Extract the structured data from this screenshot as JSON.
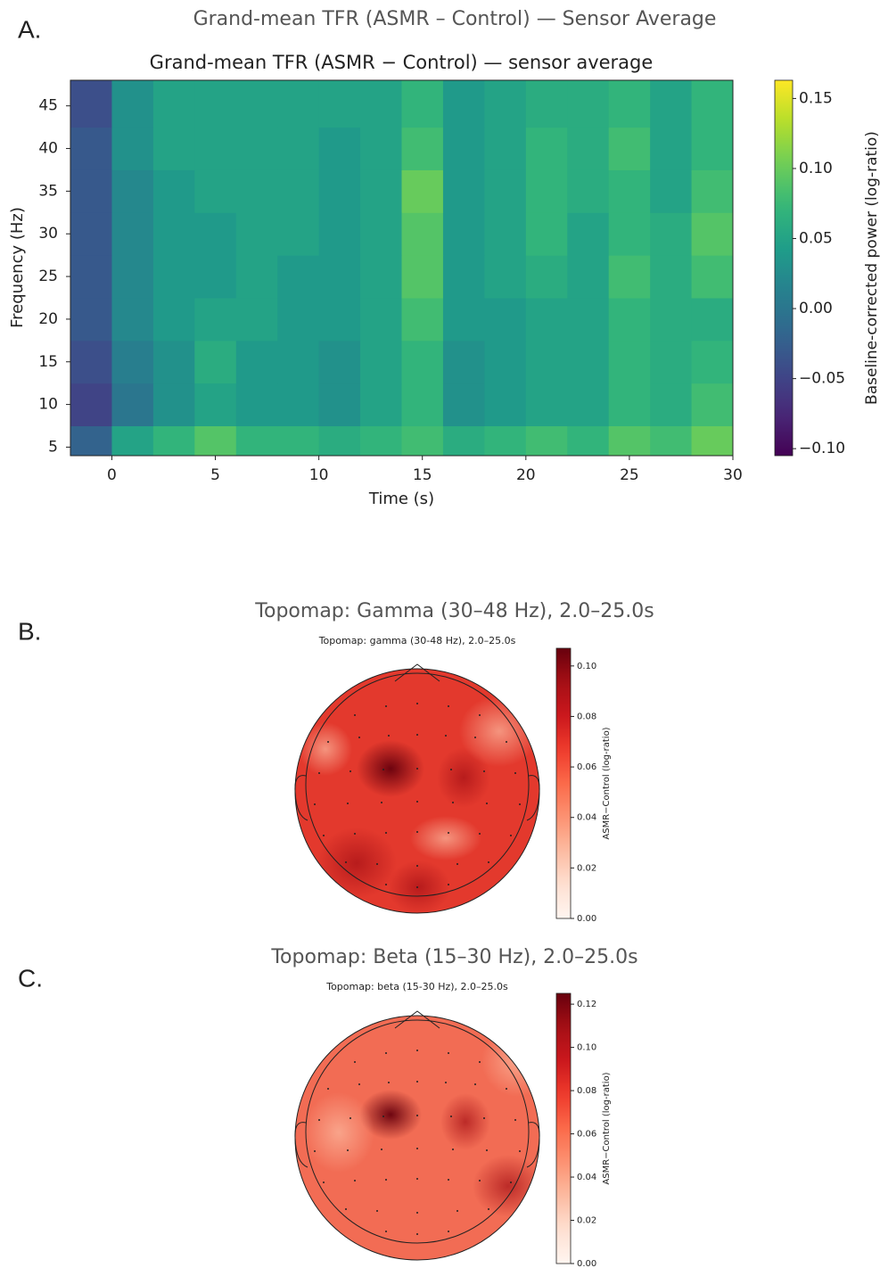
{
  "chart_data": [
    {
      "type": "heatmap",
      "panel_label": "A.",
      "figure_title": "Grand-mean TFR (ASMR – Control) — Sensor Average",
      "title": "Grand-mean TFR (ASMR − Control) — sensor average",
      "xlabel": "Time (s)",
      "ylabel": "Frequency (Hz)",
      "colorbar_label": "Baseline-corrected power (log-ratio)",
      "colormap": "viridis",
      "x": [
        -1,
        1,
        3,
        5,
        7,
        9,
        11,
        13,
        15,
        17,
        19,
        21,
        23,
        25,
        27,
        29
      ],
      "y": [
        5,
        10,
        15,
        20,
        25,
        30,
        35,
        40,
        45
      ],
      "values": [
        [
          -0.02,
          0.05,
          0.07,
          0.09,
          0.07,
          0.07,
          0.06,
          0.07,
          0.08,
          0.06,
          0.07,
          0.08,
          0.07,
          0.09,
          0.08,
          0.1
        ],
        [
          -0.05,
          0.0,
          0.03,
          0.05,
          0.04,
          0.04,
          0.03,
          0.05,
          0.07,
          0.03,
          0.04,
          0.05,
          0.05,
          0.07,
          0.06,
          0.08
        ],
        [
          -0.04,
          0.01,
          0.03,
          0.06,
          0.04,
          0.04,
          0.03,
          0.05,
          0.07,
          0.03,
          0.04,
          0.05,
          0.05,
          0.07,
          0.06,
          0.07
        ],
        [
          -0.03,
          0.02,
          0.04,
          0.05,
          0.05,
          0.04,
          0.04,
          0.05,
          0.08,
          0.04,
          0.04,
          0.05,
          0.05,
          0.07,
          0.06,
          0.06
        ],
        [
          -0.03,
          0.02,
          0.04,
          0.04,
          0.05,
          0.04,
          0.04,
          0.05,
          0.09,
          0.04,
          0.05,
          0.06,
          0.05,
          0.08,
          0.06,
          0.08
        ],
        [
          -0.03,
          0.02,
          0.04,
          0.04,
          0.05,
          0.05,
          0.04,
          0.05,
          0.09,
          0.04,
          0.05,
          0.07,
          0.05,
          0.07,
          0.06,
          0.09
        ],
        [
          -0.03,
          0.02,
          0.04,
          0.05,
          0.05,
          0.05,
          0.04,
          0.05,
          0.1,
          0.04,
          0.05,
          0.07,
          0.06,
          0.07,
          0.05,
          0.08
        ],
        [
          -0.03,
          0.03,
          0.05,
          0.05,
          0.05,
          0.05,
          0.04,
          0.05,
          0.08,
          0.04,
          0.05,
          0.07,
          0.06,
          0.08,
          0.05,
          0.07
        ],
        [
          -0.04,
          0.03,
          0.05,
          0.05,
          0.05,
          0.05,
          0.05,
          0.05,
          0.07,
          0.04,
          0.05,
          0.06,
          0.06,
          0.07,
          0.05,
          0.07
        ]
      ],
      "xlim": [
        -2,
        30
      ],
      "ylim": [
        4,
        48
      ],
      "xticks": [
        0,
        5,
        10,
        15,
        20,
        25,
        30
      ],
      "yticks": [
        5,
        10,
        15,
        20,
        25,
        30,
        35,
        40,
        45
      ],
      "clim": [
        -0.105,
        0.163
      ],
      "cticks": [
        {
          "value": -0.1,
          "label": "−0.10"
        },
        {
          "value": -0.05,
          "label": "−0.05"
        },
        {
          "value": 0,
          "label": "0.00"
        },
        {
          "value": 0.05,
          "label": "0.05"
        },
        {
          "value": 0.1,
          "label": "0.10"
        },
        0.15
      ]
    },
    {
      "type": "topomap",
      "panel_label": "B.",
      "figure_title": "Topomap: Gamma (30–48 Hz), 2.0–25.0s",
      "title": "Topomap: gamma (30-48 Hz), 2.0–25.0s",
      "colorbar_label": "ASMR−Control (log-ratio)",
      "colormap": "Reds",
      "clim": [
        0,
        0.107
      ],
      "cticks": [
        {
          "value": 0,
          "label": "0.00"
        },
        {
          "value": 0.02,
          "label": "0.02"
        },
        {
          "value": 0.04,
          "label": "0.04"
        },
        {
          "value": 0.06,
          "label": "0.06"
        },
        {
          "value": 0.08,
          "label": "0.08"
        },
        {
          "value": 0.1,
          "label": "0.10"
        }
      ]
    },
    {
      "type": "topomap",
      "panel_label": "C.",
      "figure_title": "Topomap: Beta (15–30 Hz), 2.0–25.0s",
      "title": "Topomap: beta (15-30 Hz), 2.0–25.0s",
      "colorbar_label": "ASMR−Control (log-ratio)",
      "colormap": "Reds",
      "clim": [
        0,
        0.125
      ],
      "cticks": [
        {
          "value": 0,
          "label": "0.00"
        },
        {
          "value": 0.02,
          "label": "0.02"
        },
        {
          "value": 0.04,
          "label": "0.04"
        },
        {
          "value": 0.06,
          "label": "0.06"
        },
        {
          "value": 0.08,
          "label": "0.08"
        },
        {
          "value": 0.1,
          "label": "0.10"
        },
        {
          "value": 0.12,
          "label": "0.12"
        }
      ]
    }
  ]
}
